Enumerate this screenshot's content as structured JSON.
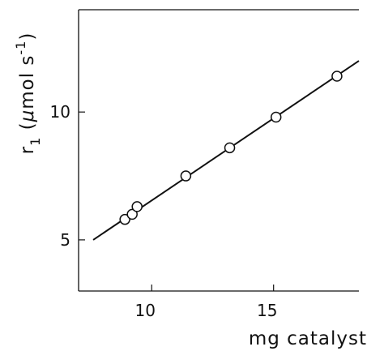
{
  "chart_data": {
    "type": "scatter",
    "xlabel": "mg catalyst",
    "ylabel": {
      "prefix": "r",
      "subscript": "1",
      "open": " (",
      "mu": "μ",
      "mol": "mol s",
      "exponent": "-1",
      "close": ")"
    },
    "xlim": [
      7,
      18.5
    ],
    "ylim": [
      3,
      14
    ],
    "x_ticks": [
      {
        "value": 10,
        "label": "10"
      },
      {
        "value": 15,
        "label": "15"
      }
    ],
    "y_ticks": [
      {
        "value": 5,
        "label": "5"
      },
      {
        "value": 10,
        "label": "10"
      }
    ],
    "grid": false,
    "legend": false,
    "points": [
      {
        "x": 8.9,
        "y": 5.8
      },
      {
        "x": 9.2,
        "y": 6.0
      },
      {
        "x": 9.4,
        "y": 6.3
      },
      {
        "x": 11.4,
        "y": 7.5
      },
      {
        "x": 13.2,
        "y": 8.6
      },
      {
        "x": 15.1,
        "y": 9.8
      },
      {
        "x": 17.6,
        "y": 11.4
      }
    ],
    "fit_line": {
      "x": [
        7.6,
        18.5
      ],
      "y": [
        5.0,
        12.0
      ]
    }
  }
}
